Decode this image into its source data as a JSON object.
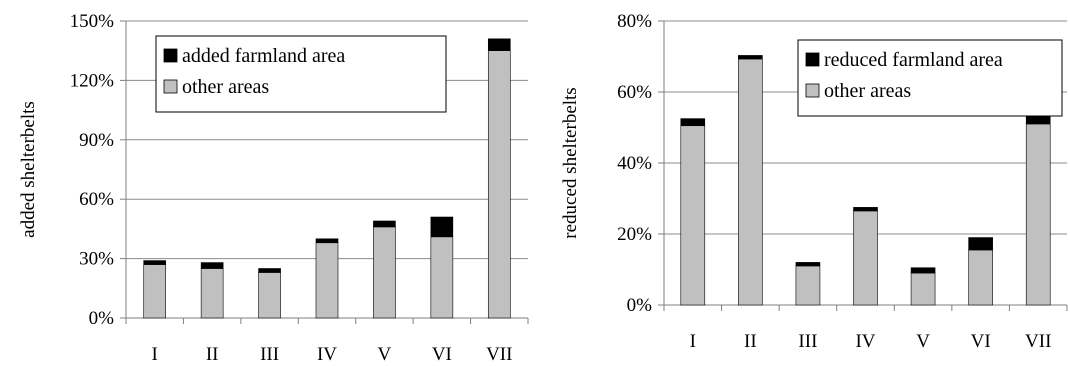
{
  "chart_data": [
    {
      "type": "bar",
      "stacked": true,
      "title": "",
      "xlabel": "",
      "ylabel": "added shelterbelts",
      "ylim": [
        0,
        150
      ],
      "yticks": [
        "0%",
        "30%",
        "60%",
        "90%",
        "120%",
        "150%"
      ],
      "categories": [
        "I",
        "II",
        "III",
        "IV",
        "V",
        "VI",
        "VII"
      ],
      "series": [
        {
          "name": "other areas",
          "color": "#c0c0c0",
          "values": [
            27,
            25,
            23,
            38,
            46,
            41,
            135
          ]
        },
        {
          "name": "added farmland area",
          "color": "#000000",
          "values": [
            2,
            3,
            2,
            2,
            3,
            10,
            6
          ]
        }
      ],
      "legend": "top-right",
      "grid": "horizontal"
    },
    {
      "type": "bar",
      "stacked": true,
      "title": "",
      "xlabel": "",
      "ylabel": "reduced shelterbelts",
      "ylim": [
        0,
        80
      ],
      "yticks": [
        "0%",
        "20%",
        "40%",
        "60%",
        "80%"
      ],
      "categories": [
        "I",
        "II",
        "III",
        "IV",
        "V",
        "VI",
        "VII"
      ],
      "series": [
        {
          "name": "other areas",
          "color": "#c0c0c0",
          "values": [
            50.5,
            69.3,
            11,
            26.5,
            9,
            15.5,
            51
          ]
        },
        {
          "name": "reduced farmland area",
          "color": "#000000",
          "values": [
            2,
            1,
            1,
            1,
            1.5,
            3.5,
            3.5
          ]
        }
      ],
      "legend": "top-right",
      "grid": "horizontal"
    }
  ]
}
